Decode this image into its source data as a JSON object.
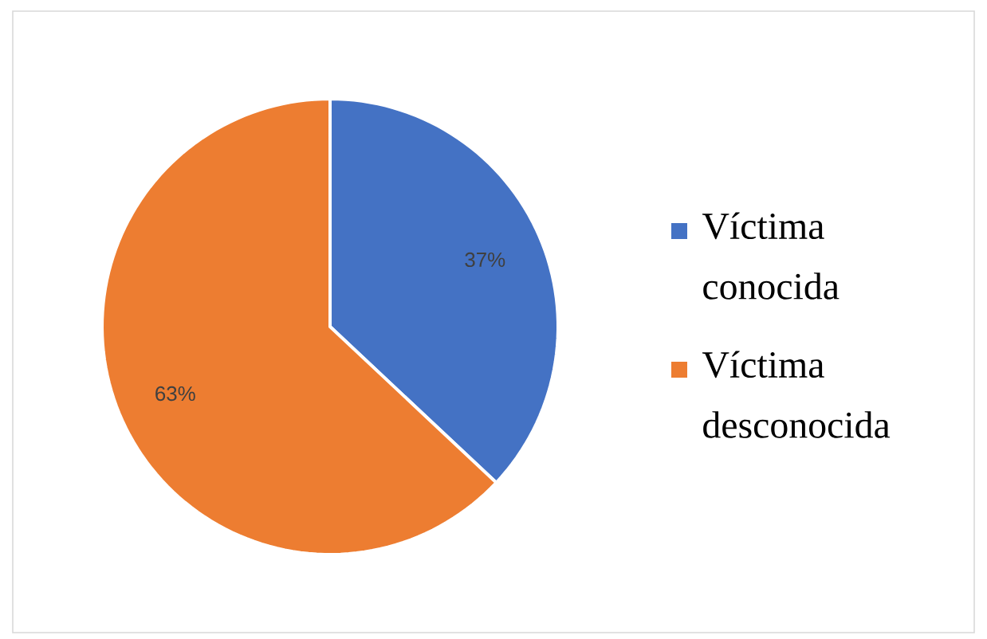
{
  "chart_data": {
    "type": "pie",
    "categories": [
      "Víctima conocida",
      "Víctima desconocida"
    ],
    "values": [
      37,
      63
    ],
    "colors": [
      "#4472c4",
      "#ed7d31"
    ],
    "value_labels": [
      "37%",
      "63%"
    ],
    "legend": "right"
  }
}
